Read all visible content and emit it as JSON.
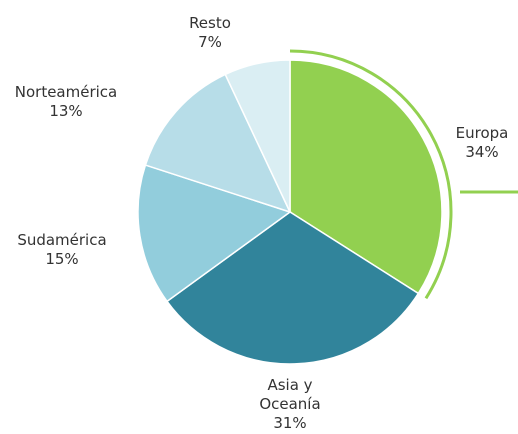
{
  "chart_data": {
    "type": "pie",
    "categories": [
      "Europa",
      "Asia y Oceanía",
      "Sudamérica",
      "Norteamérica",
      "Resto"
    ],
    "values": [
      34,
      31,
      15,
      13,
      7
    ],
    "value_labels": [
      "34%",
      "31%",
      "15%",
      "13%",
      "7%"
    ],
    "colors": [
      "#92d050",
      "#31849b",
      "#92cddc",
      "#b7dde8",
      "#daeef3"
    ]
  }
}
